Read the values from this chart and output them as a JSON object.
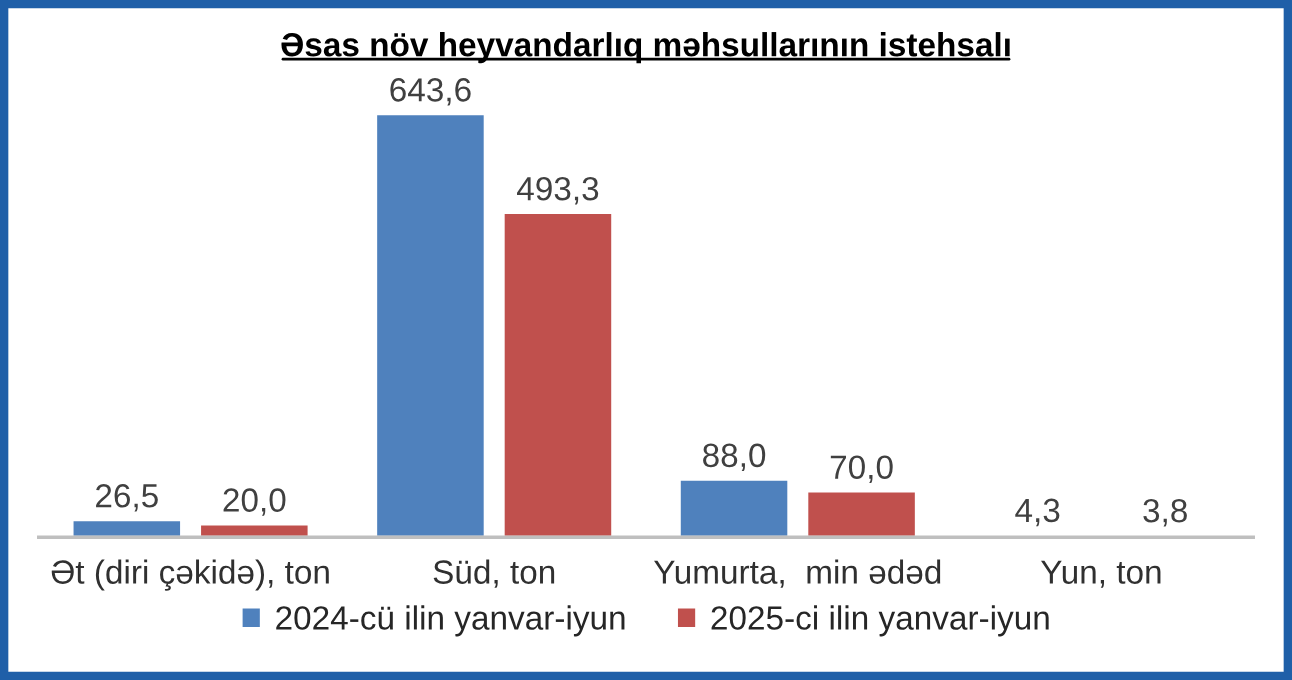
{
  "chart_data": {
    "type": "bar",
    "title": "Əsas növ heyvandarlıq məhsullarının istehsalı",
    "categories": [
      "Ət (diri çəkidə), ton",
      "Süd, ton",
      "Yumurta,  min ədəd",
      "Yun, ton"
    ],
    "series": [
      {
        "name": "2024-cü ilin yanvar-iyun",
        "color": "#4f81bd",
        "values": [
          26.5,
          643.6,
          88.0,
          4.3
        ],
        "value_labels": [
          "26,5",
          "643,6",
          "88,0",
          "4,3"
        ]
      },
      {
        "name": "2025-ci ilin yanvar-iyun",
        "color": "#c0504d",
        "values": [
          20.0,
          493.3,
          70.0,
          3.8
        ],
        "value_labels": [
          "20,0",
          "493,3",
          "70,0",
          "3,8"
        ]
      }
    ],
    "legend": "bottom",
    "grid": false
  }
}
